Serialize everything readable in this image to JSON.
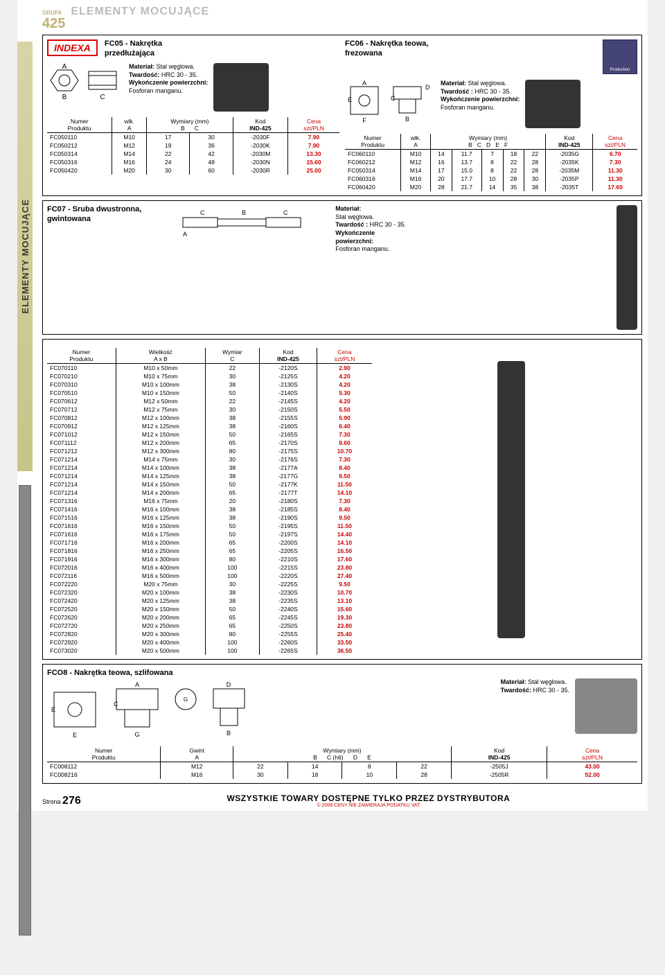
{
  "group": {
    "label": "GRUPA",
    "num": "425",
    "title": "ELEMENTY MOCUJĄCE"
  },
  "sidebar": "ELEMENTY MOCUJĄCE",
  "logo": "INDEXA",
  "badge": "Production",
  "fc05": {
    "title": "FC05 - Nakrętka",
    "sub": "przedłużająca",
    "mat": {
      "l1": "Materiał:",
      "v1": "Stal węglowa.",
      "l2": "Twardość:",
      "v2": "HRC 30 - 35.",
      "l3": "Wykończenie powierzchni:",
      "v3": "Fosforan manganu."
    },
    "hdr": {
      "c1": "Numer",
      "c2": "Produktu",
      "c3": "wlk.",
      "c4": "A",
      "c5": "Wymiary (mm)",
      "c6": "B",
      "c7": "C",
      "c8": "Kod",
      "c9": "IND-425",
      "c10": "Cena",
      "c11": "szt/PLN"
    },
    "rows": [
      [
        "FC050110",
        "M10",
        "17",
        "30",
        "-2030F",
        "7.90"
      ],
      [
        "FC050212",
        "M12",
        "19",
        "36",
        "-2030K",
        "7.90"
      ],
      [
        "FC050314",
        "M14",
        "22",
        "42",
        "-2030M",
        "13.30"
      ],
      [
        "FC050316",
        "M16",
        "24",
        "48",
        "-2030N",
        "15.60"
      ],
      [
        "FC050420",
        "M20",
        "30",
        "60",
        "-2030R",
        "25.00"
      ]
    ]
  },
  "fc06": {
    "title": "FC06 - Nakrętka teowa,",
    "sub": "frezowana",
    "mat": {
      "l1": "Materiał:",
      "v1": "Stal węglowa.",
      "l2": "Twardość :",
      "v2": "HRC 30 - 35.",
      "l3": "Wykończenie powierzchni:",
      "v3": "Fosforan manganu."
    },
    "hdr": {
      "c1": "Numer",
      "c2": "Produktu",
      "c3": "wlk.",
      "c4": "A",
      "c5": "Wymiary (mm)",
      "c6": "B",
      "c7": "C",
      "c8": "D",
      "c9": "E",
      "c10": "F",
      "c11": "Kod",
      "c12": "IND-425",
      "c13": "Cena",
      "c14": "szt/PLN"
    },
    "rows": [
      [
        "FC060110",
        "M10",
        "14",
        "11.7",
        "7",
        "18",
        "22",
        "-2035G",
        "6.70"
      ],
      [
        "FC060212",
        "M12",
        "16",
        "13.7",
        "8",
        "22",
        "28",
        "-2035K",
        "7.30"
      ],
      [
        "FC050314",
        "M14",
        "17",
        "15.0",
        "8",
        "22",
        "28",
        "-2035M",
        "11.30"
      ],
      [
        "FC060316",
        "M16",
        "20",
        "17.7",
        "10",
        "28",
        "30",
        "-2035P",
        "11.30"
      ],
      [
        "FC060420",
        "M20",
        "28",
        "21.7",
        "14",
        "35",
        "38",
        "-2035T",
        "17.60"
      ]
    ]
  },
  "fc07": {
    "title": "FC07 - Sruba dwustronna,",
    "sub": "gwintowana",
    "mat": {
      "l1": "Materiał:",
      "v1": "Stal węglowa.",
      "l2": "Twardość :",
      "v2": "HRC 30 - 35.",
      "l3": "Wykończenie",
      "l4": "powierzchni:",
      "v3": "Fosforan manganu."
    },
    "hdr": {
      "c1": "Numer",
      "c2": "Produktu",
      "c3": "Wielkość",
      "c4": "A x B",
      "c5": "Wymiar",
      "c6": "C",
      "c7": "Kod",
      "c8": "IND-425",
      "c9": "Cena",
      "c10": "szt/PLN"
    },
    "rows": [
      [
        "FC070110",
        "M10 x  50mm",
        "22",
        "-2120S",
        "2.90"
      ],
      [
        "FC070210",
        "M10 x  75mm",
        "30",
        "-2125S",
        "4.20"
      ],
      [
        "FC070310",
        "M10 x 100mm",
        "38",
        "-2130S",
        "4.20"
      ],
      [
        "FC070510",
        "M10 x 150mm",
        "50",
        "-2140S",
        "5.30"
      ],
      [
        "FC070612",
        "M12 x  50mm",
        "22",
        "-2145S",
        "4.20"
      ],
      [
        "FC070712",
        "M12 x  75mm",
        "30",
        "-2150S",
        "5.50"
      ],
      [
        "FC070812",
        "M12 x 100mm",
        "38",
        "-2155S",
        "5.90"
      ],
      [
        "FC070912",
        "M12 x 125mm",
        "38",
        "-2160S",
        "6.40"
      ],
      [
        "FC071012",
        "M12 x 150mm",
        "50",
        "-2165S",
        "7.30"
      ],
      [
        "FC071112",
        "M12 x 200mm",
        "65",
        "-2170S",
        "8.60"
      ],
      [
        "FC071212",
        "M12 x 300mm",
        "80",
        "-2175S",
        "10.70"
      ],
      [
        "FC071214",
        "M14 x  75mm",
        "30",
        "-2176S",
        "7.30"
      ],
      [
        "FC071214",
        "M14 x 100mm",
        "38",
        "-2177A",
        "8.40"
      ],
      [
        "FC071214",
        "M14 x 125mm",
        "38",
        "-2177G",
        "9.50"
      ],
      [
        "FC071214",
        "M14 x 150mm",
        "50",
        "-2177K",
        "11.50"
      ],
      [
        "FC071214",
        "M14 x 200mm",
        "65",
        "-2177T",
        "14.10"
      ],
      [
        "FC071316",
        "M16 x  75mm",
        "20",
        "-2180S",
        "7.30"
      ],
      [
        "FC071416",
        "M16 x 100mm",
        "38",
        "-2185S",
        "8.40"
      ],
      [
        "FC071516",
        "M16 x 125mm",
        "38",
        "-2190S",
        "9.50"
      ],
      [
        "FC071616",
        "M16 x 150mm",
        "50",
        "-2195S",
        "11.50"
      ],
      [
        "FC071616",
        "M16 x 175mm",
        "50",
        "-2197S",
        "14.40"
      ],
      [
        "FC071716",
        "M16 x 200mm",
        "65",
        "-2200S",
        "14.10"
      ],
      [
        "FC071816",
        "M16 x 250mm",
        "65",
        "-2205S",
        "16.50"
      ],
      [
        "FC071916",
        "M16 x 300mm",
        "80",
        "-2210S",
        "17.60"
      ],
      [
        "FC072016",
        "M16 x 400mm",
        "100",
        "-2215S",
        "23.80"
      ],
      [
        "FC072116",
        "M16 x 500mm",
        "100",
        "-2220S",
        "27.40"
      ],
      [
        "FC072220",
        "M20 x  75mm",
        "30",
        "-2225S",
        "9.50"
      ],
      [
        "FC072320",
        "M20 x 100mm",
        "38",
        "-2230S",
        "10.70"
      ],
      [
        "FC072420",
        "M20 x 125mm",
        "38",
        "-2235S",
        "13.10"
      ],
      [
        "FC072520",
        "M20 x 150mm",
        "50",
        "-2240S",
        "15.60"
      ],
      [
        "FC072620",
        "M20 x 200mm",
        "65",
        "-2245S",
        "19.30"
      ],
      [
        "FC072720",
        "M20 x 250mm",
        "65",
        "-2250S",
        "23.80"
      ],
      [
        "FC072820",
        "M20 x 300mm",
        "80",
        "-2255S",
        "25.40"
      ],
      [
        "FC072920",
        "M20 x 400mm",
        "100",
        "-2260S",
        "33.50"
      ],
      [
        "FC073020",
        "M20 x 500mm",
        "100",
        "-2265S",
        "36.50"
      ]
    ]
  },
  "fc08": {
    "title": "FCO8 - Nakrętka teowa, szlifowana",
    "mat": {
      "l1": "Materiał:",
      "v1": "Stal węglowa.",
      "l2": "Twardość:",
      "v2": "HRC 30 - 35."
    },
    "hdr": {
      "c1": "Numer",
      "c2": "Produktu",
      "c3": "Gwint",
      "c4": "A",
      "c5": "Wymiary (mm)",
      "c6": "B",
      "c7": "C (h6)",
      "c8": "D",
      "c9": "E",
      "c10": "Kod",
      "c11": "IND-425",
      "c12": "Cena",
      "c13": "szt/PLN"
    },
    "rows": [
      [
        "FC008112",
        "M12",
        "22",
        "14",
        "8",
        "22",
        "-2505J",
        "43.00"
      ],
      [
        "FC008216",
        "M16",
        "30",
        "18",
        "10",
        "28",
        "-2505R",
        "52.00"
      ]
    ]
  },
  "footer": {
    "pageLabel": "Strona",
    "pageNum": "276",
    "main": "WSZYSTKIE TOWARY DOSTĘPNE TYLKO PRZEZ DYSTRYBUTORA",
    "sub": "© 2008  CENY NIE ZAWIERAJA PODATKU VAT"
  }
}
